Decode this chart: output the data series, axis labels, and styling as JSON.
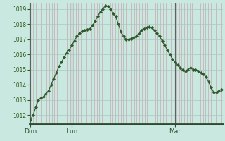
{
  "background_color": "#c8e8e0",
  "plot_bg_color": "#c8e8e0",
  "line_color": "#2d5a2d",
  "marker_color": "#2d5a2d",
  "grid_color_v": "#c8a8b0",
  "grid_color_h": "#a8c8c0",
  "axis_color": "#2d4a2d",
  "separator_color": "#606060",
  "tick_label_color": "#2d5a1a",
  "ylabel_min": 1012,
  "ylabel_max": 1019,
  "x_labels": [
    "Dim",
    "Lun",
    "Mar"
  ],
  "y_values": [
    1011.7,
    1012.0,
    1012.5,
    1013.0,
    1013.1,
    1013.2,
    1013.4,
    1013.6,
    1014.0,
    1014.4,
    1014.8,
    1015.2,
    1015.5,
    1015.8,
    1016.1,
    1016.3,
    1016.6,
    1016.9,
    1017.2,
    1017.4,
    1017.55,
    1017.6,
    1017.65,
    1017.7,
    1017.9,
    1018.2,
    1018.5,
    1018.8,
    1019.0,
    1019.2,
    1019.15,
    1019.0,
    1018.7,
    1018.5,
    1018.0,
    1017.5,
    1017.2,
    1017.0,
    1017.0,
    1017.05,
    1017.1,
    1017.2,
    1017.4,
    1017.6,
    1017.7,
    1017.75,
    1017.8,
    1017.75,
    1017.6,
    1017.4,
    1017.2,
    1016.9,
    1016.6,
    1016.3,
    1016.0,
    1015.7,
    1015.5,
    1015.3,
    1015.1,
    1015.0,
    1014.9,
    1015.0,
    1015.1,
    1015.0,
    1015.0,
    1014.9,
    1014.8,
    1014.7,
    1014.5,
    1014.2,
    1013.8,
    1013.5,
    1013.5,
    1013.6,
    1013.7
  ],
  "n_points": 75,
  "dim_idx": 0,
  "lun_idx": 16,
  "mar_idx": 56,
  "figsize": [
    3.2,
    2.0
  ],
  "dpi": 100
}
